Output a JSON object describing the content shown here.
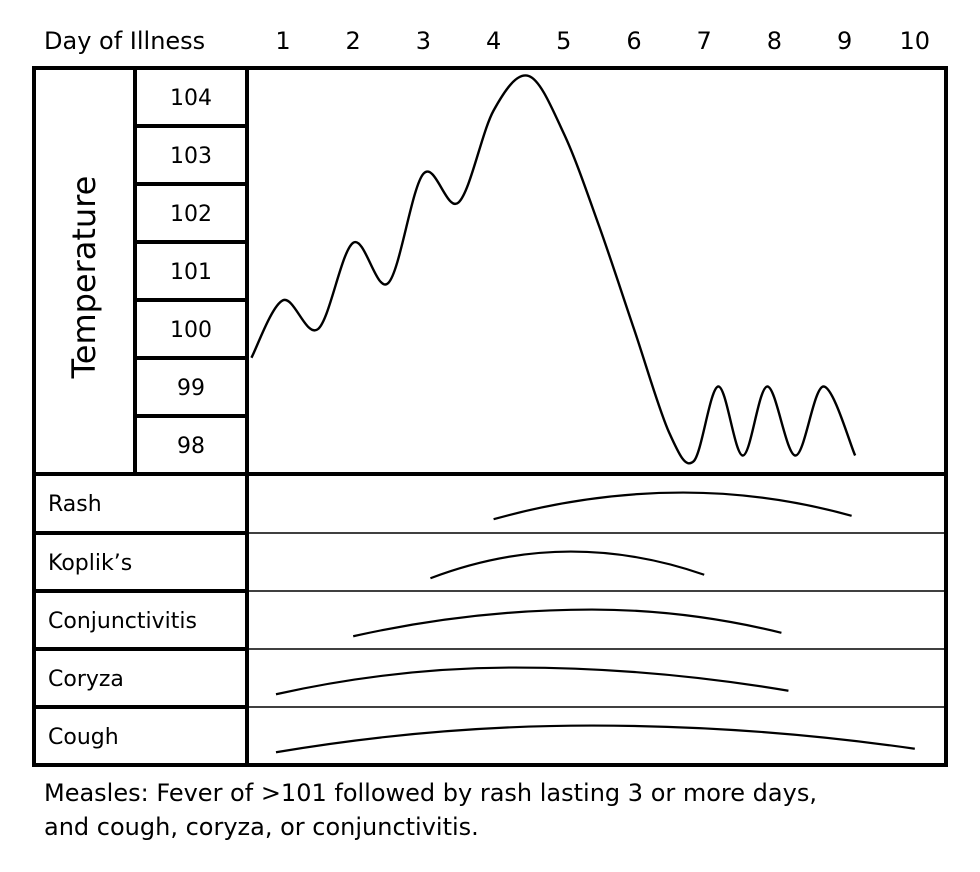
{
  "chart_data": {
    "type": "line",
    "x_header": "Day of Illness",
    "x_ticks": [
      "1",
      "2",
      "3",
      "4",
      "5",
      "6",
      "7",
      "8",
      "9",
      "10"
    ],
    "y_label": "Temperature",
    "y_ticks": [
      "104",
      "103",
      "102",
      "101",
      "100",
      "99",
      "98"
    ],
    "temperature_series": [
      {
        "day": 0.55,
        "temp": 99.5
      },
      {
        "day": 1.0,
        "temp": 100.5
      },
      {
        "day": 1.5,
        "temp": 100.0
      },
      {
        "day": 2.0,
        "temp": 101.5
      },
      {
        "day": 2.5,
        "temp": 100.8
      },
      {
        "day": 3.0,
        "temp": 102.7
      },
      {
        "day": 3.5,
        "temp": 102.2
      },
      {
        "day": 4.0,
        "temp": 103.8
      },
      {
        "day": 4.5,
        "temp": 104.4
      },
      {
        "day": 5.0,
        "temp": 103.4
      },
      {
        "day": 5.5,
        "temp": 101.8
      },
      {
        "day": 6.0,
        "temp": 100.0
      },
      {
        "day": 6.5,
        "temp": 98.2
      },
      {
        "day": 6.85,
        "temp": 97.7
      },
      {
        "day": 7.2,
        "temp": 99.0
      },
      {
        "day": 7.55,
        "temp": 97.8
      },
      {
        "day": 7.9,
        "temp": 99.0
      },
      {
        "day": 8.3,
        "temp": 97.8
      },
      {
        "day": 8.7,
        "temp": 99.0
      },
      {
        "day": 9.15,
        "temp": 97.8
      }
    ],
    "symptoms": [
      {
        "label": "Rash",
        "start_day": 4.0,
        "end_day": 9.1,
        "peak_day": 6.7
      },
      {
        "label": "Koplik’s",
        "start_day": 3.1,
        "end_day": 7.0,
        "peak_day": 5.1
      },
      {
        "label": "Conjunctivitis",
        "start_day": 2.0,
        "end_day": 8.1,
        "peak_day": 5.4
      },
      {
        "label": "Coryza",
        "start_day": 0.9,
        "end_day": 8.2,
        "peak_day": 4.3
      },
      {
        "label": "Cough",
        "start_day": 0.9,
        "end_day": 10.0,
        "peak_day": 5.4
      }
    ]
  },
  "caption": {
    "line1": "Measles:  Fever of >101 followed by rash lasting 3 or more days,",
    "line2": "and cough, coryza, or conjunctivitis."
  }
}
